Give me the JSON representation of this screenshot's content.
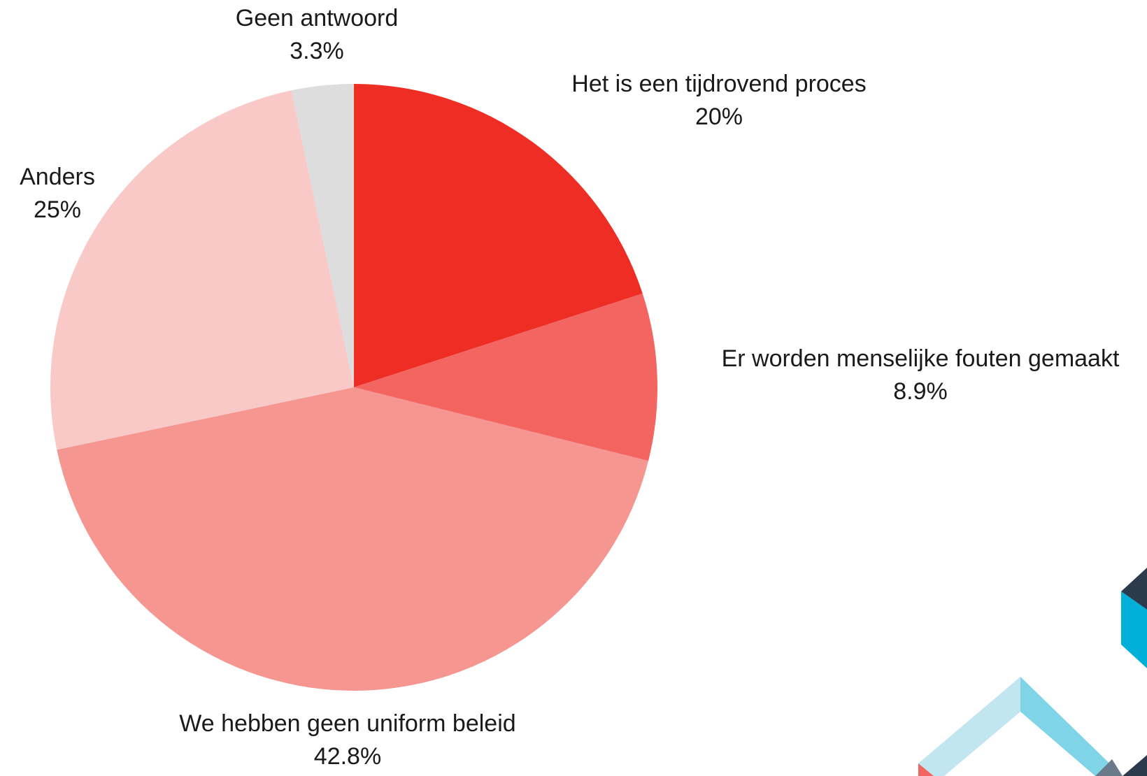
{
  "chart_data": {
    "type": "pie",
    "categories": [
      "Het is een tijdrovend proces",
      "Er worden menselijke fouten gemaakt",
      "We hebben geen uniform beleid",
      "Anders",
      "Geen antwoord"
    ],
    "values": [
      20,
      8.9,
      42.8,
      25,
      3.3
    ],
    "value_labels": [
      "20%",
      "8.9%",
      "42.8%",
      "25%",
      "3.3%"
    ],
    "colors": [
      "#ee2e24",
      "#f26560",
      "#f69691",
      "#f9c9c8",
      "#dddddd"
    ]
  }
}
